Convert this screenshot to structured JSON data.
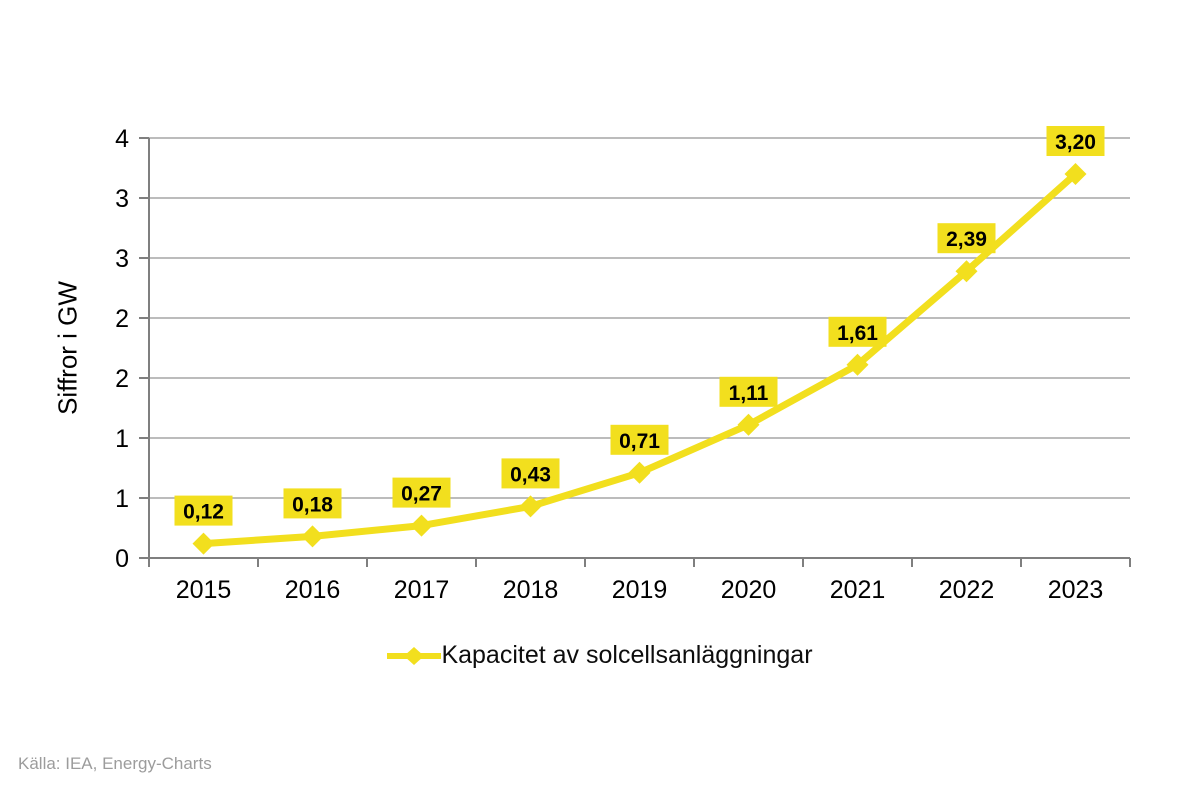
{
  "chart_data": {
    "type": "line",
    "title": "",
    "categories": [
      "2015",
      "2016",
      "2017",
      "2018",
      "2019",
      "2020",
      "2021",
      "2022",
      "2023"
    ],
    "series": [
      {
        "name": "Kapacitet av solcellsanläggningar",
        "values": [
          0.12,
          0.18,
          0.27,
          0.43,
          0.71,
          1.11,
          1.61,
          2.39,
          3.2
        ],
        "point_labels": [
          "0,12",
          "0,18",
          "0,27",
          "0,43",
          "0,71",
          "1,11",
          "1,61",
          "2,39",
          "3,20"
        ],
        "color": "#F2DF1E"
      }
    ],
    "xlabel": "",
    "ylabel": "Siffror i GW",
    "ylim": [
      0,
      3.5
    ],
    "y_ticks": {
      "values": [
        0,
        0.5,
        1,
        1.5,
        2,
        2.5,
        3,
        3.5
      ],
      "labels": [
        "0",
        "1",
        "1",
        "2",
        "2",
        "3",
        "3",
        "4"
      ]
    },
    "grid": true,
    "legend_position": "bottom",
    "marker_shape": "diamond"
  },
  "legend": {
    "label": "Kapacitet av solcellsanläggningar"
  },
  "source": {
    "text": "Källa: IEA, Energy-Charts"
  },
  "colors": {
    "series_yellow": "#F2DF1E",
    "gridline": "#A6A6A6",
    "axis": "#7F7F7F",
    "label_text": "#000000",
    "source_text": "#9C9C9C",
    "background": "#FFFFFF"
  }
}
